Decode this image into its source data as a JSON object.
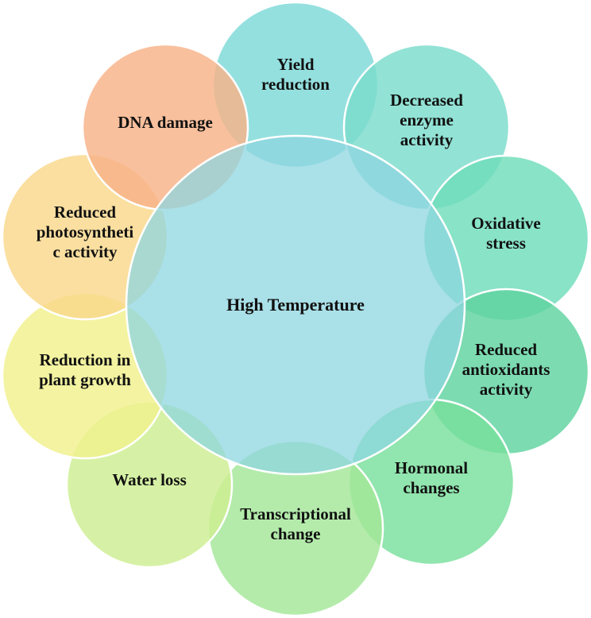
{
  "diagram": {
    "center": {
      "label": "High Temperature",
      "color": "#8ED6E0"
    },
    "effects": [
      {
        "lines": [
          "Yield",
          "reduction"
        ],
        "color": "#7DD9D8"
      },
      {
        "lines": [
          "Decreased",
          "enzyme",
          "activity"
        ],
        "color": "#7ADCCC"
      },
      {
        "lines": [
          "Oxidative",
          "stress"
        ],
        "color": "#6FDDB9"
      },
      {
        "lines": [
          "Reduced",
          "antioxidants",
          "activity"
        ],
        "color": "#5FD3A0"
      },
      {
        "lines": [
          "Hormonal",
          "changes"
        ],
        "color": "#79DF9C"
      },
      {
        "lines": [
          "Transcriptional",
          "change"
        ],
        "color": "#A4E798"
      },
      {
        "lines": [
          "Water loss"
        ],
        "color": "#CDEE91"
      },
      {
        "lines": [
          "Reduction in",
          "plant growth"
        ],
        "color": "#F0F08C"
      },
      {
        "lines": [
          "Reduced",
          "photosyntheti",
          "c activity"
        ],
        "color": "#F9D88B"
      },
      {
        "lines": [
          "DNA damage"
        ],
        "color": "#F8B287"
      }
    ]
  }
}
